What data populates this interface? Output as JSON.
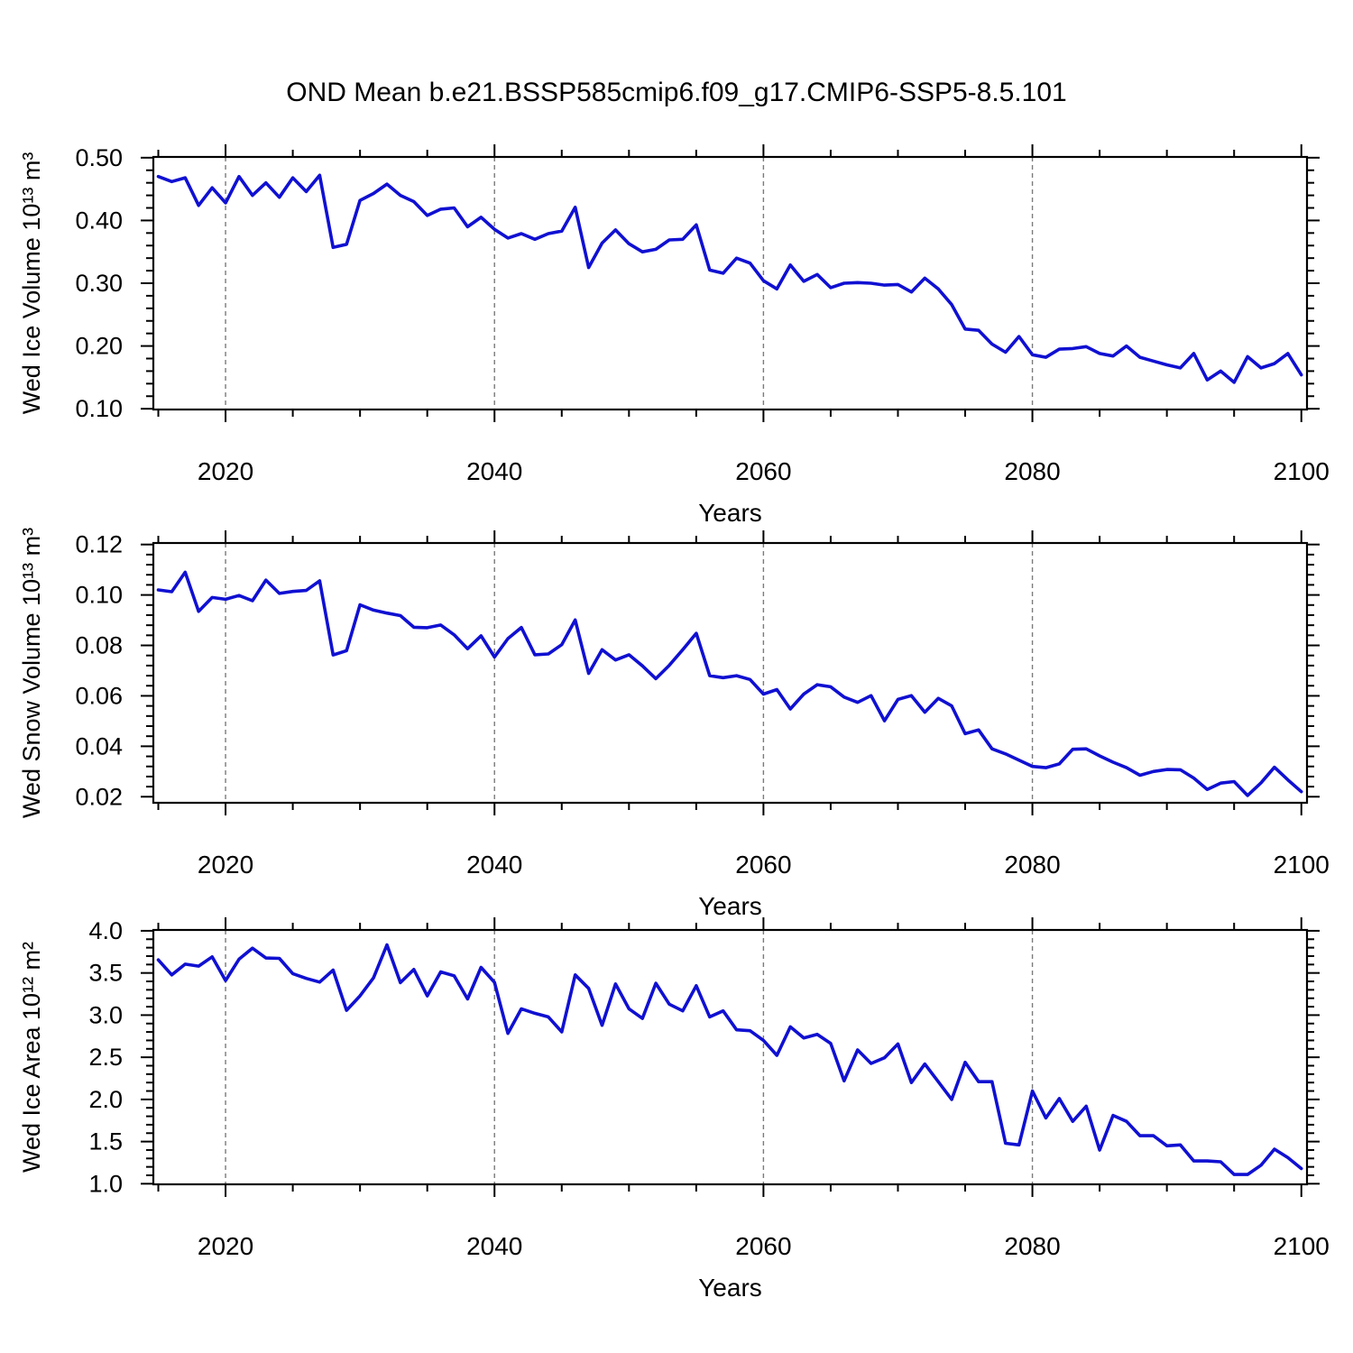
{
  "title": "OND Mean b.e21.BSSP585cmip6.f09_g17.CMIP6-SSP5-8.5.101",
  "colors": {
    "line": "#1010d2",
    "frame": "#000000",
    "grid": "#7b7b7b",
    "background": "#ffffff",
    "text": "#000000"
  },
  "x_axis": {
    "label": "Years",
    "xlim": [
      2014.63,
      2100.42
    ],
    "major_ticks": [
      2020,
      2040,
      2060,
      2080,
      2100
    ],
    "minor_tick_step": 5,
    "gridline_years": [
      2020,
      2040,
      2060,
      2080
    ],
    "first_year": 2015,
    "last_year": 2100
  },
  "chart_data": [
    {
      "type": "line",
      "id": "wed-ice-volume",
      "ylabel": "Wed Ice Volume 10¹³ m³",
      "ylim": [
        0.0988,
        0.5012
      ],
      "yticks": [
        0.1,
        0.2,
        0.3,
        0.4,
        0.5
      ],
      "ytick_labels": [
        "0.10",
        "0.20",
        "0.30",
        "0.40",
        "0.50"
      ],
      "y_minor_step": 0.02,
      "x_start": 2015,
      "x_step": 1,
      "values": [
        0.47,
        0.462,
        0.468,
        0.424,
        0.452,
        0.428,
        0.47,
        0.44,
        0.46,
        0.437,
        0.468,
        0.446,
        0.472,
        0.357,
        0.362,
        0.432,
        0.443,
        0.458,
        0.44,
        0.43,
        0.408,
        0.418,
        0.42,
        0.39,
        0.405,
        0.386,
        0.372,
        0.379,
        0.37,
        0.379,
        0.383,
        0.421,
        0.325,
        0.364,
        0.385,
        0.363,
        0.35,
        0.354,
        0.369,
        0.37,
        0.393,
        0.321,
        0.316,
        0.34,
        0.332,
        0.304,
        0.291,
        0.329,
        0.303,
        0.314,
        0.293,
        0.3,
        0.301,
        0.3,
        0.297,
        0.298,
        0.286,
        0.308,
        0.291,
        0.266,
        0.227,
        0.225,
        0.203,
        0.19,
        0.215,
        0.186,
        0.182,
        0.195,
        0.196,
        0.199,
        0.188,
        0.184,
        0.2,
        0.182,
        0.176,
        0.17,
        0.165,
        0.188,
        0.146,
        0.16,
        0.142,
        0.183,
        0.165,
        0.172,
        0.188,
        0.154
      ]
    },
    {
      "type": "line",
      "id": "wed-snow-volume",
      "ylabel": "Wed Snow Volume 10¹³ m³",
      "ylim": [
        0.0176,
        0.1206
      ],
      "yticks": [
        0.02,
        0.04,
        0.06,
        0.08,
        0.1,
        0.12
      ],
      "ytick_labels": [
        "0.02",
        "0.04",
        "0.06",
        "0.08",
        "0.10",
        "0.12"
      ],
      "y_minor_step": 0.004,
      "x_start": 2015,
      "x_step": 1,
      "values": [
        0.102,
        0.1013,
        0.109,
        0.0935,
        0.099,
        0.0983,
        0.0998,
        0.0977,
        0.1059,
        0.1006,
        0.1014,
        0.1018,
        0.1056,
        0.0762,
        0.0779,
        0.0961,
        0.094,
        0.0928,
        0.0918,
        0.0872,
        0.087,
        0.0881,
        0.0842,
        0.0787,
        0.0838,
        0.0754,
        0.0827,
        0.0871,
        0.0763,
        0.0766,
        0.0803,
        0.0901,
        0.0689,
        0.0783,
        0.0742,
        0.0763,
        0.0719,
        0.0668,
        0.0721,
        0.0783,
        0.0848,
        0.068,
        0.0672,
        0.068,
        0.0665,
        0.0607,
        0.0625,
        0.0548,
        0.0607,
        0.0644,
        0.0636,
        0.0595,
        0.0574,
        0.0601,
        0.0501,
        0.0586,
        0.0601,
        0.0535,
        0.059,
        0.056,
        0.045,
        0.0465,
        0.039,
        0.037,
        0.0345,
        0.032,
        0.0315,
        0.033,
        0.0388,
        0.039,
        0.0362,
        0.0337,
        0.0315,
        0.0285,
        0.03,
        0.0308,
        0.0307,
        0.0274,
        0.0229,
        0.0254,
        0.026,
        0.0205,
        0.0255,
        0.0317,
        0.0267,
        0.022
      ]
    },
    {
      "type": "line",
      "id": "wed-ice-area",
      "ylabel": "Wed Ice Area 10¹² m²",
      "ylim": [
        0.993,
        4.01
      ],
      "yticks": [
        1.0,
        1.5,
        2.0,
        2.5,
        3.0,
        3.5,
        4.0
      ],
      "ytick_labels": [
        "1.0",
        "1.5",
        "2.0",
        "2.5",
        "3.0",
        "3.5",
        "4.0"
      ],
      "y_minor_step": 0.1,
      "x_start": 2015,
      "x_step": 1,
      "values": [
        3.655,
        3.477,
        3.605,
        3.581,
        3.691,
        3.41,
        3.663,
        3.794,
        3.677,
        3.673,
        3.492,
        3.435,
        3.392,
        3.534,
        3.057,
        3.228,
        3.442,
        3.833,
        3.385,
        3.541,
        3.228,
        3.513,
        3.466,
        3.192,
        3.566,
        3.388,
        2.783,
        3.075,
        3.021,
        2.979,
        2.801,
        3.477,
        3.317,
        2.879,
        3.37,
        3.075,
        2.961,
        3.378,
        3.129,
        3.05,
        3.349,
        2.979,
        3.05,
        2.826,
        2.815,
        2.701,
        2.523,
        2.861,
        2.729,
        2.772,
        2.665,
        2.22,
        2.587,
        2.427,
        2.494,
        2.658,
        2.2,
        2.42,
        2.21,
        2.0,
        2.44,
        2.21,
        2.21,
        1.48,
        1.46,
        2.1,
        1.78,
        2.01,
        1.74,
        1.92,
        1.4,
        1.81,
        1.74,
        1.57,
        1.57,
        1.45,
        1.46,
        1.27,
        1.27,
        1.26,
        1.11,
        1.11,
        1.22,
        1.41,
        1.31,
        1.18
      ]
    }
  ]
}
